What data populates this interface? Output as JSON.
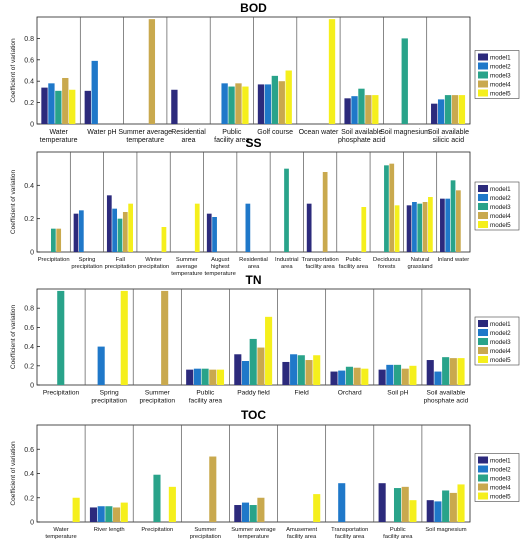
{
  "colors": [
    "#2c2a7c",
    "#1f78c9",
    "#29a38a",
    "#c9a94e",
    "#f5ef1c"
  ],
  "legend_labels": [
    "model1",
    "model2",
    "model3",
    "model4",
    "model5"
  ],
  "ylabel": "Coefficient of variation",
  "chart_data": [
    {
      "type": "bar",
      "title": "BOD",
      "ylabel": "Coefficient of variation",
      "ylim": [
        0,
        1
      ],
      "yticks": [
        0,
        0.2,
        0.4,
        0.6,
        0.8
      ],
      "categories": [
        "Water temperature",
        "Water pH",
        "Summer average temperature",
        "Residential area",
        "Public facility area",
        "Golf course",
        "Ocean water",
        "Soil available phosphate acid",
        "Soil magnesium",
        "Soil available silicic acid"
      ],
      "series": [
        {
          "name": "model1",
          "values": [
            0.34,
            0.31,
            0,
            0.32,
            0,
            0.37,
            0,
            0.24,
            0,
            0.19
          ]
        },
        {
          "name": "model2",
          "values": [
            0.38,
            0.59,
            0,
            0,
            0.38,
            0.37,
            0,
            0.26,
            0,
            0.23
          ]
        },
        {
          "name": "model3",
          "values": [
            0.31,
            0,
            0,
            0,
            0.35,
            0.45,
            0,
            0.33,
            0.8,
            0.27
          ]
        },
        {
          "name": "model4",
          "values": [
            0.43,
            0,
            0.98,
            0,
            0.38,
            0.4,
            0,
            0.27,
            0,
            0.27
          ]
        },
        {
          "name": "model5",
          "values": [
            0.32,
            0,
            0,
            0,
            0.35,
            0.5,
            0.98,
            0.27,
            0,
            0.27
          ]
        }
      ]
    },
    {
      "type": "bar",
      "title": "SS",
      "ylabel": "Coefficient of variation",
      "ylim": [
        0,
        0.6
      ],
      "yticks": [
        0,
        0.2,
        0.4
      ],
      "categories": [
        "Precipitation",
        "Spring precipitation",
        "Fall precipitation",
        "Winter precipitation",
        "Summer average temperature",
        "August highest temperature",
        "Residential area",
        "Industrial area",
        "Transportation facility area",
        "Public facility area",
        "Deciduous forests",
        "Natural grassland",
        "Inland water"
      ],
      "series": [
        {
          "name": "model1",
          "values": [
            0,
            0.23,
            0.34,
            0,
            0,
            0.23,
            0,
            0,
            0.29,
            0,
            0,
            0.28,
            0.32
          ]
        },
        {
          "name": "model2",
          "values": [
            0,
            0.25,
            0.26,
            0,
            0,
            0.21,
            0.29,
            0,
            0,
            0,
            0,
            0.3,
            0.32
          ]
        },
        {
          "name": "model3",
          "values": [
            0.14,
            0,
            0.2,
            0,
            0,
            0,
            0,
            0.5,
            0,
            0,
            0.52,
            0.29,
            0.43
          ]
        },
        {
          "name": "model4",
          "values": [
            0.14,
            0,
            0.24,
            0,
            0,
            0,
            0,
            0,
            0.48,
            0,
            0.53,
            0.3,
            0.37
          ]
        },
        {
          "name": "model5",
          "values": [
            0,
            0,
            0.29,
            0.15,
            0.29,
            0,
            0,
            0,
            0,
            0.27,
            0.28,
            0.33,
            0
          ]
        }
      ]
    },
    {
      "type": "bar",
      "title": "TN",
      "ylabel": "Coefficient of variation",
      "ylim": [
        0,
        1
      ],
      "yticks": [
        0,
        0.2,
        0.4,
        0.6,
        0.8
      ],
      "categories": [
        "Precipitation",
        "Spring precipitation",
        "Summer precipitation",
        "Public facility area",
        "Paddy field",
        "Field",
        "Orchard",
        "Soil pH",
        "Soil available phosphate acid"
      ],
      "series": [
        {
          "name": "model1",
          "values": [
            0,
            0,
            0,
            0.16,
            0.32,
            0.24,
            0.14,
            0.16,
            0.26
          ]
        },
        {
          "name": "model2",
          "values": [
            0,
            0.4,
            0,
            0.17,
            0.25,
            0.32,
            0.15,
            0.21,
            0.14
          ]
        },
        {
          "name": "model3",
          "values": [
            0.98,
            0,
            0,
            0.17,
            0.48,
            0.31,
            0.19,
            0.21,
            0.29
          ]
        },
        {
          "name": "model4",
          "values": [
            0,
            0,
            0.98,
            0.16,
            0.39,
            0.26,
            0.18,
            0.17,
            0.28
          ]
        },
        {
          "name": "model5",
          "values": [
            0,
            0.98,
            0,
            0.16,
            0.71,
            0.31,
            0.17,
            0.2,
            0.28
          ]
        }
      ]
    },
    {
      "type": "bar",
      "title": "TOC",
      "ylabel": "Coefficient of variation",
      "ylim": [
        0,
        0.8
      ],
      "yticks": [
        0,
        0.2,
        0.4,
        0.6
      ],
      "categories": [
        "Water temperature",
        "River length",
        "Precipitation",
        "Summer precipitation",
        "Summer average temperature",
        "Amusement facility area",
        "Transportation facility area",
        "Public facility area",
        "Soil magnesium"
      ],
      "series": [
        {
          "name": "model1",
          "values": [
            0,
            0.12,
            0,
            0,
            0.14,
            0,
            0,
            0.32,
            0.18
          ]
        },
        {
          "name": "model2",
          "values": [
            0,
            0.13,
            0,
            0,
            0.16,
            0,
            0.32,
            0,
            0.17
          ]
        },
        {
          "name": "model3",
          "values": [
            0,
            0.13,
            0.39,
            0,
            0.14,
            0,
            0,
            0.28,
            0.26
          ]
        },
        {
          "name": "model4",
          "values": [
            0,
            0.12,
            0,
            0.54,
            0.2,
            0,
            0,
            0.29,
            0.24
          ]
        },
        {
          "name": "model5",
          "values": [
            0.2,
            0.16,
            0.29,
            0,
            0,
            0.23,
            0,
            0.18,
            0.31
          ]
        }
      ]
    }
  ]
}
